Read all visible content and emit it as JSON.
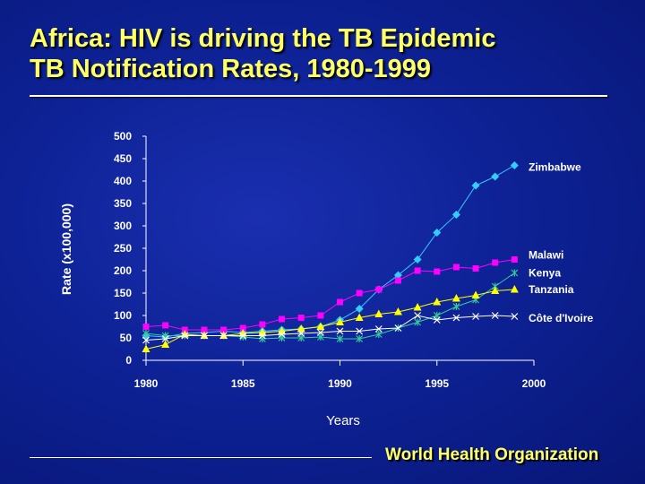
{
  "slide": {
    "title_line1": "Africa: HIV is driving the TB Epidemic",
    "title_line2": "TB Notification Rates, 1980-1999",
    "footer": "World Health Organization"
  },
  "colors": {
    "background": "#0e2296",
    "title": "#ffff66",
    "Zimbabwe": "#33ccff",
    "Malawi": "#ff00ff",
    "Kenya": "#33cc99",
    "Tanzania": "#ffff00",
    "Cote d'Ivoire": "#ffffff"
  },
  "chart_data": {
    "type": "line",
    "title": "",
    "xlabel": "Years",
    "ylabel": "Rate (x100,000)",
    "xlim": [
      1980,
      2000
    ],
    "ylim": [
      0,
      500
    ],
    "x_ticks": [
      1980,
      1985,
      1990,
      1995,
      2000
    ],
    "y_ticks": [
      0,
      50,
      100,
      150,
      200,
      250,
      300,
      350,
      400,
      450,
      500
    ],
    "grid": false,
    "legend": "inline labels at right end of each line",
    "x": [
      1980,
      1981,
      1982,
      1983,
      1984,
      1985,
      1986,
      1987,
      1988,
      1989,
      1990,
      1991,
      1992,
      1993,
      1994,
      1995,
      1996,
      1997,
      1998,
      1999
    ],
    "series": [
      {
        "name": "Zimbabwe",
        "marker": "diamond",
        "color": "#33ccff",
        "values": [
          55,
          52,
          60,
          62,
          65,
          62,
          65,
          68,
          70,
          75,
          90,
          115,
          158,
          190,
          225,
          285,
          325,
          390,
          410,
          435
        ]
      },
      {
        "name": "Malawi",
        "marker": "square",
        "color": "#ff00ff",
        "values": [
          75,
          78,
          68,
          68,
          68,
          72,
          80,
          92,
          95,
          100,
          130,
          150,
          158,
          178,
          200,
          198,
          208,
          205,
          218,
          225
        ]
      },
      {
        "name": "Kenya",
        "marker": "star",
        "color": "#33cc99",
        "values": [
          60,
          55,
          55,
          55,
          55,
          52,
          48,
          50,
          50,
          52,
          48,
          48,
          58,
          72,
          85,
          100,
          120,
          135,
          165,
          195
        ]
      },
      {
        "name": "Tanzania",
        "marker": "triangle",
        "color": "#ffff00",
        "values": [
          25,
          35,
          58,
          55,
          55,
          60,
          62,
          65,
          70,
          75,
          85,
          95,
          103,
          108,
          118,
          130,
          138,
          145,
          155,
          158
        ]
      },
      {
        "name": "Côte d'Ivoire",
        "marker": "x",
        "color": "#ffffff",
        "values": [
          45,
          48,
          55,
          55,
          55,
          55,
          55,
          58,
          60,
          62,
          65,
          65,
          70,
          72,
          100,
          90,
          95,
          98,
          100,
          98
        ]
      }
    ]
  }
}
